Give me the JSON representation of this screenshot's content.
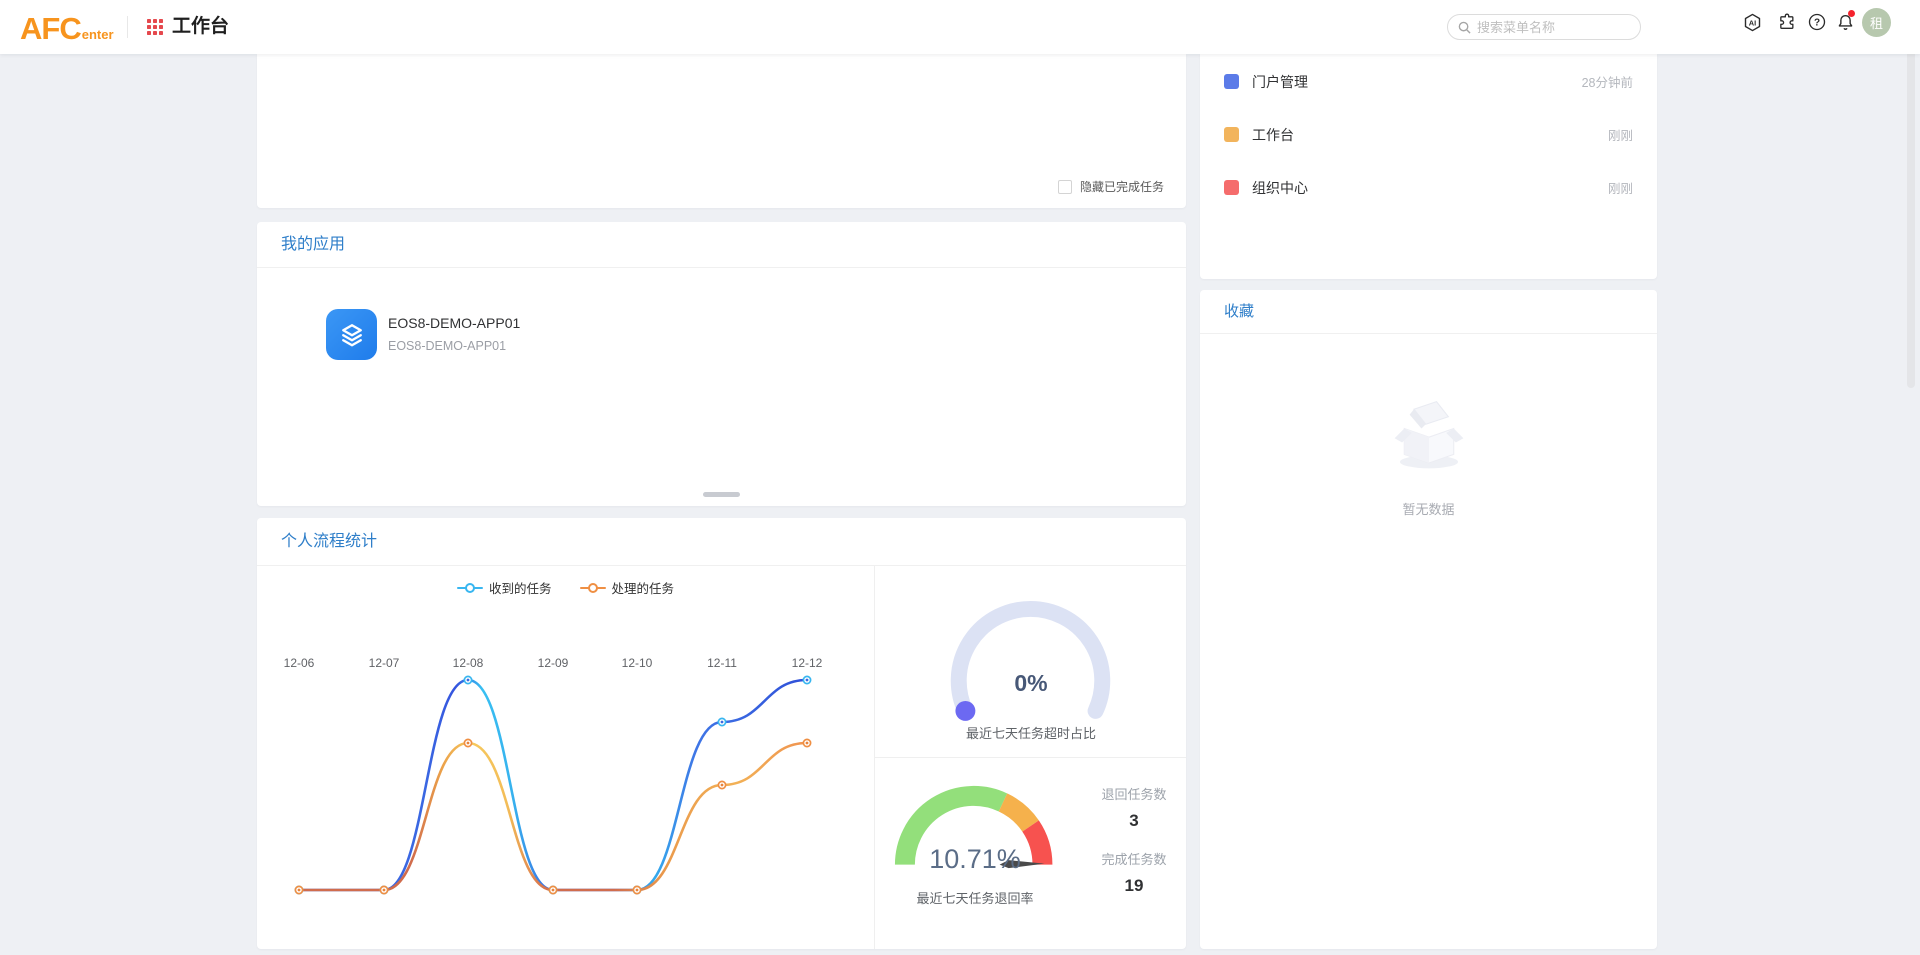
{
  "theme": {
    "accent_blue": "#2e7ec9",
    "page_bg": "#eef0f4",
    "brand_orange": "#f7941e",
    "card_bg": "#ffffff"
  },
  "header": {
    "logo_main": "AFC",
    "logo_sub": "enter",
    "app_title": "工作台",
    "search_placeholder": "搜索菜单名称",
    "avatar_text": "租",
    "has_notification_badge": true
  },
  "tasks_card": {
    "hide_completed_label": "隐藏已完成任务"
  },
  "my_apps_card": {
    "title": "我的应用",
    "apps": [
      {
        "name": "EOS8-DEMO-APP01",
        "description": "EOS8-DEMO-APP01"
      }
    ]
  },
  "recent_card": {
    "items": [
      {
        "label": "门户管理",
        "time": "28分钟前",
        "color": "#5b7be8"
      },
      {
        "label": "工作台",
        "time": "刚刚",
        "color": "#f2b45c"
      },
      {
        "label": "组织中心",
        "time": "刚刚",
        "color": "#f56c6c"
      }
    ]
  },
  "favorites_card": {
    "title": "收藏",
    "empty_text": "暂无数据"
  },
  "stats_card": {
    "title": "个人流程统计",
    "chart_data": {
      "type": "line",
      "categories": [
        "12-06",
        "12-07",
        "12-08",
        "12-09",
        "12-10",
        "12-11",
        "12-12"
      ],
      "series": [
        {
          "name": "收到的任务",
          "values": [
            0,
            0,
            10,
            0,
            0,
            8,
            10
          ],
          "color": "#3b6ae0",
          "marker_color": "#38b6f0"
        },
        {
          "name": "处理的任务",
          "values": [
            0,
            0,
            7,
            0,
            0,
            5,
            7
          ],
          "color": "#e8833c",
          "marker_color": "#ef8f43"
        }
      ],
      "ylim": [
        0,
        10
      ],
      "legend_position": "top",
      "x_labels_position": "top",
      "grid": false,
      "smooth": true
    },
    "overtime_gauge": {
      "value": "0%",
      "label": "最近七天任务超时占比",
      "percent": 0,
      "track_color": "#dce2f4",
      "dot_color": "#6c69f2"
    },
    "return_gauge": {
      "value": "10.71%",
      "label": "最近七天任务退回率",
      "segments": [
        {
          "color": "#93df7b",
          "fraction": 0.64
        },
        {
          "color": "#f5b14c",
          "fraction": 0.17
        },
        {
          "color": "#f7524f",
          "fraction": 0.19
        }
      ]
    },
    "returned_stat": {
      "label": "退回任务数",
      "value": "3"
    },
    "completed_stat": {
      "label": "完成任务数",
      "value": "19"
    }
  }
}
